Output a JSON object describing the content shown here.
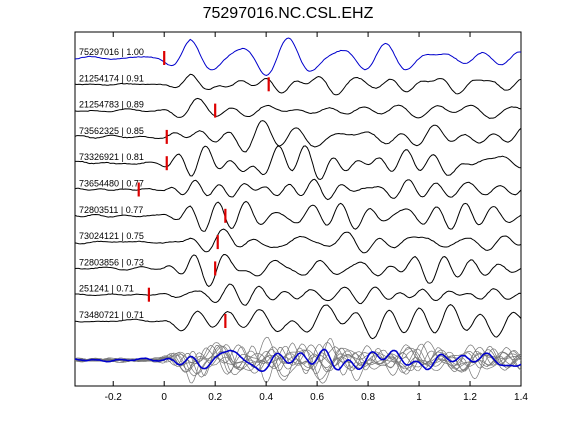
{
  "chart_data": {
    "type": "line",
    "title": "75297016.NC.CSL.EHZ",
    "xlabel": "",
    "ylabel": "",
    "xlim": [
      -0.35,
      1.4
    ],
    "x_ticks": [
      -0.2,
      0,
      0.2,
      0.4,
      0.6,
      0.8,
      1,
      1.2,
      1.4
    ],
    "x_tick_labels": [
      "-0.2",
      "0",
      "0.2",
      "0.4",
      "0.6",
      "0.8",
      "1",
      "1.2",
      "1.4"
    ],
    "grid": false,
    "traces": [
      {
        "label": "75297016 | 1.00",
        "pick": 0.0,
        "color": "#0000cc"
      },
      {
        "label": "21254174 | 0.91",
        "pick": 0.41,
        "color": "#000000"
      },
      {
        "label": "21254783 | 0.89",
        "pick": 0.2,
        "color": "#000000"
      },
      {
        "label": "73562325 | 0.85",
        "pick": 0.01,
        "color": "#000000"
      },
      {
        "label": "73326921 | 0.81",
        "pick": 0.01,
        "color": "#000000"
      },
      {
        "label": "73654480 | 0.77",
        "pick": -0.1,
        "color": "#000000"
      },
      {
        "label": "72803511 | 0.77",
        "pick": 0.24,
        "color": "#000000"
      },
      {
        "label": "73024121 | 0.75",
        "pick": 0.21,
        "color": "#000000"
      },
      {
        "label": "72803856 | 0.73",
        "pick": 0.2,
        "color": "#000000"
      },
      {
        "label": "251241 | 0.71",
        "pick": -0.06,
        "color": "#000000"
      },
      {
        "label": "73480721 | 0.71",
        "pick": 0.24,
        "color": "#000000"
      }
    ],
    "stack": {
      "label": "",
      "color_traces": "#777777",
      "color_mean": "#0000cc"
    },
    "pick_color": "#dd0000"
  }
}
